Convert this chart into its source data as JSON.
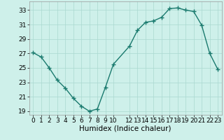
{
  "x": [
    0,
    1,
    2,
    3,
    4,
    5,
    6,
    7,
    8,
    9,
    10,
    12,
    13,
    14,
    15,
    16,
    17,
    18,
    19,
    20,
    21,
    22,
    23
  ],
  "y": [
    27.1,
    26.5,
    25.0,
    23.3,
    22.2,
    20.8,
    19.7,
    19.0,
    19.3,
    22.3,
    25.5,
    28.0,
    30.2,
    31.3,
    31.5,
    32.0,
    33.2,
    33.3,
    33.0,
    32.8,
    30.9,
    27.0,
    24.8
  ],
  "line_color": "#1a7a6e",
  "bg_color": "#cef0ea",
  "grid_color": "#aad8d0",
  "xlabel": "Humidex (Indice chaleur)",
  "xlim": [
    -0.5,
    23.5
  ],
  "ylim": [
    18.5,
    34.2
  ],
  "yticks": [
    19,
    21,
    23,
    25,
    27,
    29,
    31,
    33
  ],
  "xticks": [
    0,
    1,
    2,
    3,
    4,
    5,
    6,
    7,
    8,
    9,
    10,
    12,
    13,
    14,
    15,
    16,
    17,
    18,
    19,
    20,
    21,
    22,
    23
  ],
  "marker": "+",
  "linewidth": 1.0,
  "markersize": 4,
  "markeredgewidth": 1.0,
  "xlabel_fontsize": 7.5,
  "tick_fontsize": 6.5
}
